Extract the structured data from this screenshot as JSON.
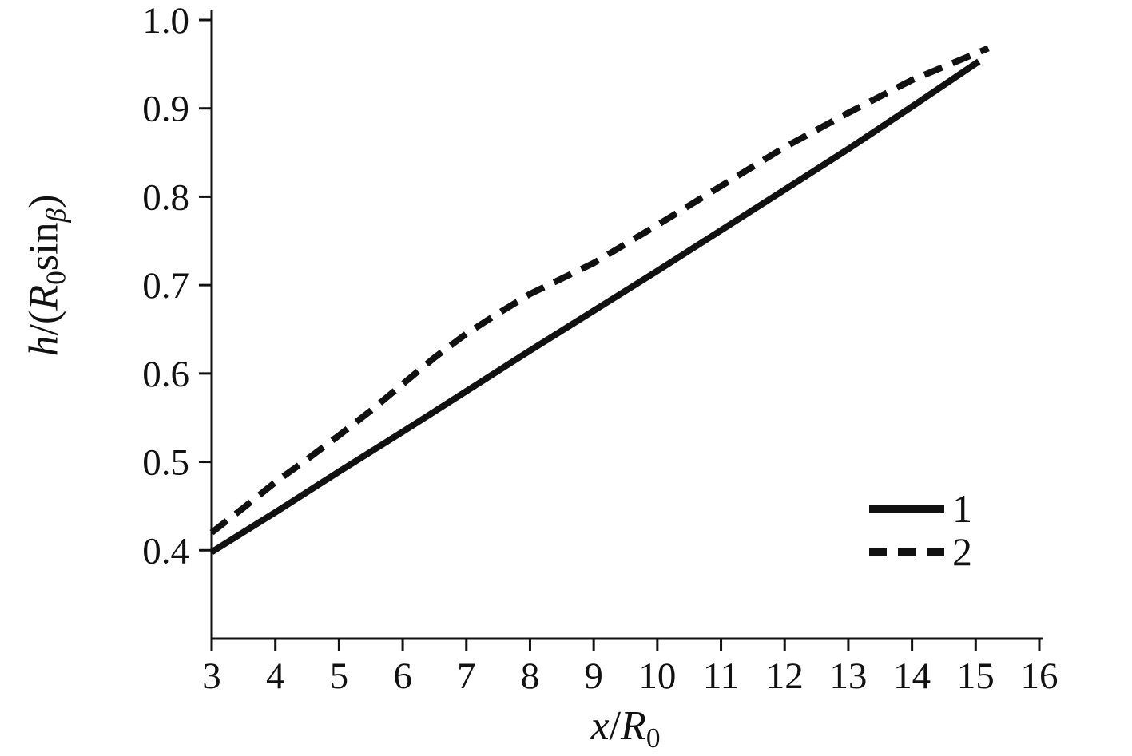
{
  "chart_data": {
    "type": "line",
    "title": "",
    "xlabel": "x/R0",
    "ylabel": "h/(R0 sin beta)",
    "xlabel_parts": {
      "var": "x",
      "slash": "/",
      "sym": "R",
      "sub": "0"
    },
    "ylabel_parts": {
      "p1": "h",
      "p2": "/(",
      "p3": "R",
      "sub1": "0",
      "p4": "sin",
      "sub2": "β",
      "p5": ")"
    },
    "x_range": [
      3,
      16
    ],
    "y_range": [
      0.3,
      1.0
    ],
    "x_ticks": [
      3,
      4,
      5,
      6,
      7,
      8,
      9,
      10,
      11,
      12,
      13,
      14,
      15,
      16
    ],
    "y_ticks": [
      0.4,
      0.5,
      0.6,
      0.7,
      0.8,
      0.9,
      1.0
    ],
    "grid": false,
    "legend_position": "lower right",
    "line_color": "#111111",
    "series": [
      {
        "name": "1",
        "style": "solid",
        "color": "#111111",
        "x": [
          3,
          4,
          5,
          6,
          7,
          8,
          9,
          10,
          11,
          12,
          13,
          14,
          15.05
        ],
        "y": [
          0.398,
          0.443,
          0.489,
          0.534,
          0.58,
          0.626,
          0.671,
          0.716,
          0.762,
          0.808,
          0.854,
          0.902,
          0.953
        ]
      },
      {
        "name": "2",
        "style": "dashed",
        "color": "#111111",
        "x": [
          3,
          3.5,
          4,
          4.5,
          5,
          5.5,
          6,
          6.5,
          7,
          7.5,
          8,
          9,
          10,
          11,
          12,
          13,
          14,
          15.2
        ],
        "y": [
          0.42,
          0.448,
          0.477,
          0.503,
          0.53,
          0.558,
          0.588,
          0.618,
          0.645,
          0.668,
          0.69,
          0.725,
          0.768,
          0.812,
          0.856,
          0.895,
          0.932,
          0.968
        ]
      }
    ]
  }
}
